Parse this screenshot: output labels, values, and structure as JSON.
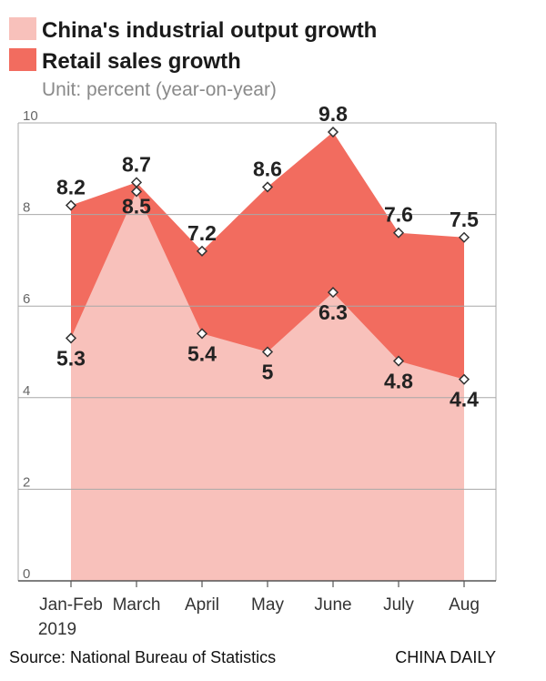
{
  "chart_data": {
    "type": "area",
    "title": "",
    "subtitle": "Unit: percent (year-on-year)",
    "categories": [
      "Jan-Feb",
      "March",
      "April",
      "May",
      "June",
      "July",
      "Aug"
    ],
    "category_sub": "2019",
    "series": [
      {
        "name": "Retail sales growth",
        "values": [
          8.2,
          8.7,
          7.2,
          8.6,
          9.8,
          7.6,
          7.5
        ],
        "color": "#f26c5f"
      },
      {
        "name": "China's industrial output growth",
        "values": [
          5.3,
          8.5,
          5.4,
          5,
          6.3,
          4.8,
          4.4
        ],
        "color": "#f8c1bb"
      }
    ],
    "value_labels": {
      "retail": [
        "8.2",
        "8.7",
        "7.2",
        "8.6",
        "9.8",
        "7.6",
        "7.5"
      ],
      "industrial": [
        "5.3",
        "8.5",
        "5.4",
        "5",
        "6.3",
        "4.8",
        "4.4"
      ]
    },
    "yticks": [
      "0",
      "2",
      "4",
      "6",
      "8",
      "10"
    ],
    "ylim": [
      0,
      10
    ],
    "grid": true,
    "legend_position": "top-left",
    "xlabel": "",
    "ylabel": ""
  },
  "legend": {
    "industrial": "China's industrial output growth",
    "retail": "Retail sales growth"
  },
  "footer": {
    "source": "Source: National Bureau of Statistics",
    "brand": "CHINA DAILY"
  },
  "colors": {
    "retail": "#f26c5f",
    "industrial": "#f8c1bb",
    "grid": "#a8a8a8",
    "marker_fill": "#ffffff",
    "marker_stroke": "#333333"
  }
}
